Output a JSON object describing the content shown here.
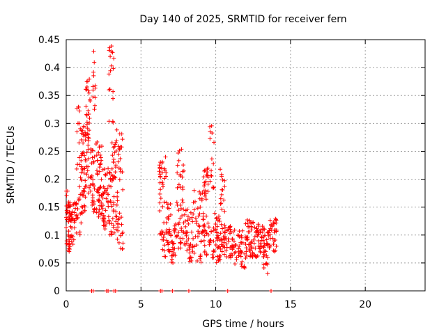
{
  "chart_data": {
    "type": "scatter",
    "title": "Day 140 of 2025, SRMTID for receiver fern",
    "xlabel": "GPS time / hours",
    "ylabel": "SRMTID / TECUs",
    "xlim": [
      0,
      24
    ],
    "ylim": [
      0,
      0.45
    ],
    "xticks": [
      0,
      5,
      10,
      15,
      20
    ],
    "yticks": [
      0,
      0.05,
      0.1,
      0.15,
      0.2,
      0.25,
      0.3,
      0.35,
      0.4,
      0.45
    ],
    "grid": true,
    "marker": "+",
    "marker_color": "#ff0000",
    "grid_color": "#a0a0a0",
    "axis_color": "#000000",
    "series": [
      {
        "name": "SRMTID",
        "clusters": [
          {
            "x": [
              0.0,
              0.25
            ],
            "yMin": 0.07,
            "yMax": 0.18,
            "n": 40
          },
          {
            "x": [
              0.25,
              0.7
            ],
            "yMin": 0.08,
            "yMax": 0.16,
            "n": 40
          },
          {
            "x": [
              0.7,
              1.0
            ],
            "yMin": 0.1,
            "yMax": 0.33,
            "n": 30
          },
          {
            "x": [
              1.0,
              1.3
            ],
            "yMin": 0.13,
            "yMax": 0.3,
            "n": 45
          },
          {
            "x": [
              1.3,
              1.6
            ],
            "yMin": 0.17,
            "yMax": 0.38,
            "n": 40
          },
          {
            "x": [
              1.6,
              1.9
            ],
            "yMin": 0.14,
            "yMax": 0.26,
            "n": 30
          },
          {
            "x": [
              1.75,
              1.95
            ],
            "yMin": 0.32,
            "yMax": 0.45,
            "n": 12
          },
          {
            "x": [
              2.0,
              2.4
            ],
            "yMin": 0.13,
            "yMax": 0.27,
            "n": 45
          },
          {
            "x": [
              2.4,
              2.9
            ],
            "yMin": 0.11,
            "yMax": 0.22,
            "n": 45
          },
          {
            "x": [
              2.85,
              3.2
            ],
            "yMin": 0.3,
            "yMax": 0.44,
            "n": 18
          },
          {
            "x": [
              2.9,
              3.3
            ],
            "yMin": 0.1,
            "yMax": 0.27,
            "n": 40
          },
          {
            "x": [
              3.3,
              3.8
            ],
            "yMin": 0.07,
            "yMax": 0.29,
            "n": 50
          },
          {
            "x": [
              6.2,
              6.7
            ],
            "yMin": 0.06,
            "yMax": 0.24,
            "n": 45
          },
          {
            "x": [
              6.7,
              7.0
            ],
            "yMin": 0.07,
            "yMax": 0.16,
            "n": 25
          },
          {
            "x": [
              7.0,
              7.4
            ],
            "yMin": 0.05,
            "yMax": 0.12,
            "n": 25
          },
          {
            "x": [
              7.4,
              7.9
            ],
            "yMin": 0.07,
            "yMax": 0.26,
            "n": 45
          },
          {
            "x": [
              7.9,
              8.5
            ],
            "yMin": 0.05,
            "yMax": 0.15,
            "n": 40
          },
          {
            "x": [
              8.5,
              9.3
            ],
            "yMin": 0.05,
            "yMax": 0.18,
            "n": 50
          },
          {
            "x": [
              9.2,
              9.6
            ],
            "yMin": 0.06,
            "yMax": 0.23,
            "n": 35
          },
          {
            "x": [
              9.6,
              9.9
            ],
            "yMin": 0.18,
            "yMax": 0.3,
            "n": 15
          },
          {
            "x": [
              9.6,
              10.3
            ],
            "yMin": 0.05,
            "yMax": 0.14,
            "n": 45
          },
          {
            "x": [
              10.3,
              10.6
            ],
            "yMin": 0.14,
            "yMax": 0.22,
            "n": 15
          },
          {
            "x": [
              10.3,
              11.0
            ],
            "yMin": 0.06,
            "yMax": 0.12,
            "n": 40
          },
          {
            "x": [
              11.0,
              12.0
            ],
            "yMin": 0.04,
            "yMax": 0.11,
            "n": 55
          },
          {
            "x": [
              12.0,
              12.5
            ],
            "yMin": 0.06,
            "yMax": 0.13,
            "n": 40
          },
          {
            "x": [
              12.5,
              13.2
            ],
            "yMin": 0.06,
            "yMax": 0.12,
            "n": 45
          },
          {
            "x": [
              13.2,
              13.5
            ],
            "yMin": 0.03,
            "yMax": 0.12,
            "n": 25
          },
          {
            "x": [
              13.5,
              14.1
            ],
            "yMin": 0.07,
            "yMax": 0.13,
            "n": 35
          }
        ]
      },
      {
        "name": "zero markers",
        "x": [
          1.7,
          1.8,
          2.7,
          2.8,
          3.2,
          3.3,
          6.3,
          6.4,
          7.1,
          8.2,
          10.8,
          13.7
        ]
      }
    ]
  }
}
